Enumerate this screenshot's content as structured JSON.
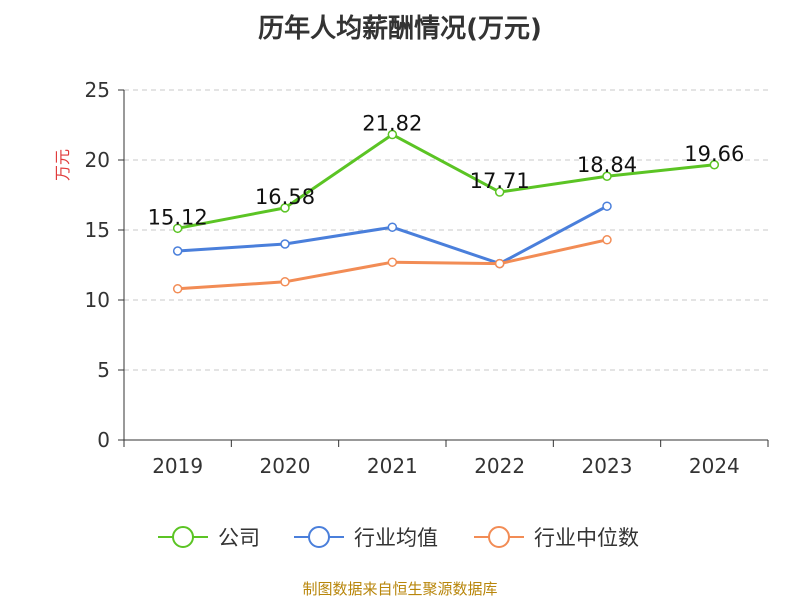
{
  "chart_data": {
    "type": "line",
    "title": "历年人均薪酬情况(万元)",
    "ylabel": "万元",
    "categories": [
      "2019",
      "2020",
      "2021",
      "2022",
      "2023",
      "2024"
    ],
    "ylim": [
      0,
      25
    ],
    "yticks": [
      0,
      5,
      10,
      15,
      20,
      25
    ],
    "grid": true,
    "legend_position": "bottom",
    "series": [
      {
        "name": "公司",
        "color": "#5bc424",
        "values": [
          15.12,
          16.58,
          21.82,
          17.71,
          18.84,
          19.66
        ],
        "labels": [
          "15.12",
          "16.58",
          "21.82",
          "17.71",
          "18.84",
          "19.66"
        ]
      },
      {
        "name": "行业均值",
        "color": "#4a7fdb",
        "values": [
          13.5,
          14.0,
          15.2,
          12.6,
          16.7,
          null
        ]
      },
      {
        "name": "行业中位数",
        "color": "#f28c55",
        "values": [
          10.8,
          11.3,
          12.7,
          12.6,
          14.3,
          null
        ]
      }
    ]
  },
  "source": "制图数据来自恒生聚源数据库"
}
